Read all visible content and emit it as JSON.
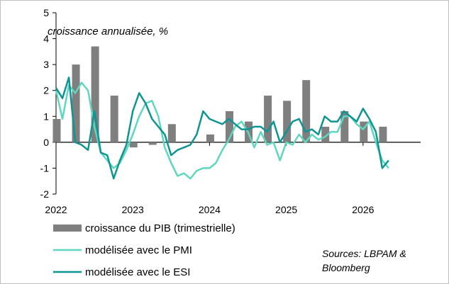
{
  "chart_data": {
    "type": "bar+line",
    "subtitle": "croissance annualisée, %",
    "source": [
      "Sources: LBPAM &",
      "Bloomberg"
    ],
    "ylim": [
      -2,
      5
    ],
    "yticks": [
      -2,
      -1,
      0,
      1,
      2,
      3,
      4,
      5
    ],
    "xlim": [
      2022.0,
      2026.75
    ],
    "xticks": [
      "2022",
      "2023",
      "2024",
      "2025",
      "2026"
    ],
    "grid": false,
    "legend_position": "bottom",
    "colors": {
      "bars": "#7f7f7f",
      "pmi": "#5fd6bf",
      "esi": "#0f9494"
    },
    "series": [
      {
        "name": "croissance du PIB (trimestrielle)",
        "kind": "bar",
        "x": [
          2022.0,
          2022.25,
          2022.5,
          2022.75,
          2023.0,
          2023.25,
          2023.5,
          2023.75,
          2024.0,
          2024.25,
          2024.5,
          2024.75,
          2025.0,
          2025.25,
          2025.5,
          2025.75,
          2026.0,
          2026.25,
          2026.5
        ],
        "values": [
          0.9,
          3.0,
          3.7,
          1.8,
          -0.2,
          -0.1,
          0.7,
          0.0,
          0.3,
          1.2,
          0.8,
          1.8,
          1.6,
          2.4,
          0.6,
          1.2,
          0.8,
          0.6,
          0.0
        ]
      },
      {
        "name": "modélisée avec le PMI",
        "kind": "line",
        "x": [
          2022.0,
          2022.083,
          2022.167,
          2022.25,
          2022.333,
          2022.417,
          2022.5,
          2022.583,
          2022.667,
          2022.75,
          2022.833,
          2022.917,
          2023.0,
          2023.083,
          2023.167,
          2023.25,
          2023.333,
          2023.417,
          2023.5,
          2023.583,
          2023.667,
          2023.75,
          2023.833,
          2023.917,
          2024.0,
          2024.083,
          2024.167,
          2024.25,
          2024.333,
          2024.417,
          2024.5,
          2024.583,
          2024.667,
          2024.75,
          2024.833,
          2024.917,
          2025.0,
          2025.083,
          2025.167,
          2025.25,
          2025.333,
          2025.417,
          2025.5,
          2025.583,
          2025.667,
          2025.75,
          2025.833,
          2025.917,
          2026.0,
          2026.083,
          2026.167,
          2026.25,
          2026.333
        ],
        "values": [
          2.0,
          0.9,
          2.2,
          1.9,
          2.3,
          2.0,
          0.6,
          -0.4,
          -0.7,
          -1.0,
          -0.8,
          -0.3,
          0.3,
          1.0,
          1.5,
          1.6,
          1.0,
          -0.2,
          -0.8,
          -1.3,
          -1.2,
          -1.4,
          -1.1,
          -1.0,
          -1.0,
          -0.8,
          -0.3,
          0.1,
          0.6,
          0.8,
          0.4,
          -0.2,
          0.4,
          -0.1,
          0.0,
          -0.7,
          0.0,
          -0.1,
          0.3,
          0.0,
          0.3,
          0.1,
          0.2,
          0.4,
          0.4,
          1.0,
          1.0,
          0.7,
          0.5,
          0.8,
          0.0,
          -0.7,
          -1.0
        ]
      },
      {
        "name": "modélisée avec le ESI",
        "kind": "line",
        "x": [
          2022.0,
          2022.083,
          2022.167,
          2022.25,
          2022.333,
          2022.417,
          2022.5,
          2022.583,
          2022.667,
          2022.75,
          2022.833,
          2022.917,
          2023.0,
          2023.083,
          2023.167,
          2023.25,
          2023.333,
          2023.417,
          2023.5,
          2023.583,
          2023.667,
          2023.75,
          2023.833,
          2023.917,
          2024.0,
          2024.083,
          2024.167,
          2024.25,
          2024.333,
          2024.417,
          2024.5,
          2024.583,
          2024.667,
          2024.75,
          2024.833,
          2024.917,
          2025.0,
          2025.083,
          2025.167,
          2025.25,
          2025.333,
          2025.417,
          2025.5,
          2025.583,
          2025.667,
          2025.75,
          2025.833,
          2025.917,
          2026.0,
          2026.083,
          2026.167,
          2026.25,
          2026.333
        ],
        "values": [
          2.1,
          1.7,
          2.5,
          0.0,
          -0.1,
          -0.3,
          1.2,
          -0.4,
          -0.5,
          -1.4,
          -0.7,
          -0.1,
          1.2,
          1.9,
          1.5,
          0.9,
          0.6,
          0.3,
          -0.5,
          -0.3,
          -0.2,
          -0.1,
          0.3,
          1.2,
          0.9,
          0.8,
          0.7,
          0.9,
          0.7,
          0.5,
          0.5,
          0.6,
          0.6,
          0.4,
          0.8,
          0.0,
          0.4,
          0.8,
          0.9,
          0.4,
          0.5,
          0.3,
          1.0,
          0.8,
          0.8,
          1.2,
          1.0,
          0.8,
          1.3,
          0.9,
          0.4,
          -1.0,
          -0.7
        ]
      }
    ]
  }
}
